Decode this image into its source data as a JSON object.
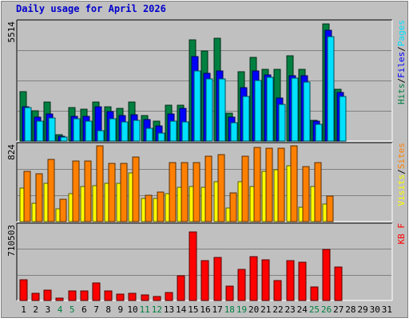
{
  "chart_data": {
    "type": "bar",
    "title": "Daily usage for April 2026",
    "x": [
      1,
      2,
      3,
      4,
      5,
      6,
      7,
      8,
      9,
      10,
      11,
      12,
      13,
      14,
      15,
      16,
      17,
      18,
      19,
      20,
      21,
      22,
      23,
      24,
      25,
      26,
      27,
      28,
      29,
      30,
      31
    ],
    "weekend_days": [
      4,
      5,
      11,
      12,
      18,
      19,
      25,
      26
    ],
    "panels": [
      {
        "name": "pages-files-hits",
        "ymax_label": "5514",
        "ymax": 5514,
        "series": [
          {
            "name": "Hits",
            "color": "#008040",
            "values": [
              2296,
              1430,
              1836,
              300,
              1560,
              1473,
              1844,
              1600,
              1534,
              1836,
              1180,
              930,
              1690,
              1690,
              4750,
              4200,
              4790,
              1310,
              3240,
              3920,
              3370,
              3370,
              3990,
              3370,
              970,
              5470,
              2420,
              0,
              0,
              0,
              0
            ]
          },
          {
            "name": "Files",
            "color": "#0000ff",
            "values": [
              1620,
              1130,
              1280,
              210,
              1150,
              1150,
              1600,
              1360,
              1180,
              1220,
              990,
              710,
              1260,
              1520,
              3950,
              3170,
              3290,
              1130,
              2500,
              3290,
              3100,
              2030,
              3070,
              3070,
              920,
              5170,
              2290,
              0,
              0,
              0,
              0
            ]
          },
          {
            "name": "Pages",
            "color": "#00e0ff",
            "values": [
              1550,
              940,
              1070,
              170,
              1030,
              940,
              500,
              1030,
              900,
              980,
              610,
              390,
              940,
              910,
              3290,
              2910,
              2910,
              870,
              2070,
              2820,
              2970,
              1710,
              2950,
              2760,
              800,
              4890,
              2080,
              0,
              0,
              0,
              0
            ]
          }
        ]
      },
      {
        "name": "sites-visits",
        "ymax_label": "824",
        "ymax": 824,
        "series": [
          {
            "name": "Visits",
            "color": "#ffff00",
            "values": [
              365,
              200,
              420,
              140,
              300,
              380,
              390,
              420,
              420,
              530,
              250,
              250,
              300,
              370,
              380,
              370,
              430,
              150,
              430,
              380,
              550,
              560,
              610,
              160,
              380,
              190,
              0,
              0,
              0,
              0,
              0
            ]
          },
          {
            "name": "Sites",
            "color": "#ff8000",
            "values": [
              550,
              520,
              675,
              240,
              655,
              655,
              820,
              630,
              630,
              700,
              285,
              325,
              640,
              640,
              640,
              710,
              730,
              310,
              710,
              810,
              800,
              800,
              820,
              600,
              640,
              280,
              0,
              0,
              0,
              0,
              0
            ]
          }
        ]
      },
      {
        "name": "kbytes",
        "ymax_label": "710503",
        "ymax": 710503,
        "series": [
          {
            "name": "KBytes",
            "color": "#ff0000",
            "values": [
              200000,
              70000,
              100000,
              20000,
              90000,
              90000,
              170000,
              90000,
              60000,
              70000,
              50000,
              40000,
              80000,
              240000,
              655000,
              380000,
              410000,
              140000,
              300000,
              420000,
              390000,
              190000,
              380000,
              370000,
              130000,
              490000,
              320000,
              0,
              0,
              0,
              0
            ]
          }
        ]
      }
    ],
    "legend_right": [
      [
        {
          "text": "Hits",
          "color": "#008040"
        },
        {
          "text": "/",
          "color": "#000000"
        },
        {
          "text": "Files",
          "color": "#0000ff"
        },
        {
          "text": "/",
          "color": "#000000"
        },
        {
          "text": "Pages",
          "color": "#00e0ff"
        }
      ],
      [
        {
          "text": "Visits",
          "color": "#ffff00"
        },
        {
          "text": "/",
          "color": "#000000"
        },
        {
          "text": "Sites",
          "color": "#ff8000"
        }
      ],
      [
        {
          "text": "KB F",
          "color": "#ff0000"
        }
      ]
    ]
  }
}
